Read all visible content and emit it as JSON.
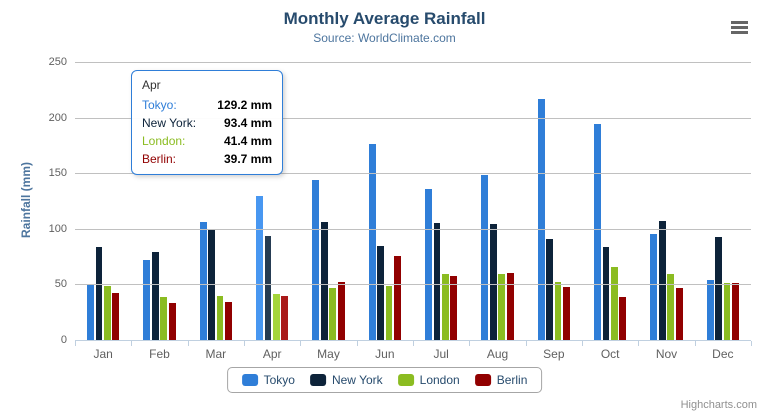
{
  "chart_data": {
    "type": "bar",
    "title": "Monthly Average Rainfall",
    "subtitle": "Source: WorldClimate.com",
    "xlabel": "",
    "ylabel": "Rainfall (mm)",
    "ylim": [
      0,
      250
    ],
    "yticks": [
      0,
      50,
      100,
      150,
      200,
      250
    ],
    "grid": true,
    "legend_position": "bottom-center",
    "categories": [
      "Jan",
      "Feb",
      "Mar",
      "Apr",
      "May",
      "Jun",
      "Jul",
      "Aug",
      "Sep",
      "Oct",
      "Nov",
      "Dec"
    ],
    "series": [
      {
        "name": "Tokyo",
        "color": "#2f7ed8",
        "hover_color": "#4897f1",
        "values": [
          49.9,
          71.5,
          106.4,
          129.2,
          144.0,
          176.0,
          135.6,
          148.5,
          216.4,
          194.1,
          95.6,
          54.4
        ]
      },
      {
        "name": "New York",
        "color": "#0d233a",
        "hover_color": "#263c53",
        "values": [
          83.6,
          78.8,
          98.5,
          93.4,
          106.0,
          84.5,
          105.0,
          104.3,
          91.2,
          83.5,
          106.6,
          92.3
        ]
      },
      {
        "name": "London",
        "color": "#8bbc21",
        "hover_color": "#a4d53a",
        "values": [
          48.9,
          38.8,
          39.3,
          41.4,
          47.0,
          48.3,
          59.0,
          59.6,
          52.4,
          65.2,
          59.3,
          51.2
        ]
      },
      {
        "name": "Berlin",
        "color": "#910000",
        "hover_color": "#aa1919",
        "values": [
          42.4,
          33.2,
          34.5,
          39.7,
          52.6,
          75.5,
          57.4,
          60.4,
          47.6,
          39.1,
          46.8,
          51.1
        ]
      }
    ],
    "highlighted_category": "Apr"
  },
  "tooltip": {
    "header": "Apr",
    "border_color": "#2f7ed8",
    "rows": [
      {
        "label": "Tokyo:",
        "value": "129.2 mm",
        "color": "#2f7ed8"
      },
      {
        "label": "New York:",
        "value": "93.4 mm",
        "color": "#0d233a"
      },
      {
        "label": "London:",
        "value": "41.4 mm",
        "color": "#8bbc21"
      },
      {
        "label": "Berlin:",
        "value": "39.7 mm",
        "color": "#910000"
      }
    ]
  },
  "legend": {
    "items": [
      {
        "label": "Tokyo",
        "color": "#2f7ed8"
      },
      {
        "label": "New York",
        "color": "#0d233a"
      },
      {
        "label": "London",
        "color": "#8bbc21"
      },
      {
        "label": "Berlin",
        "color": "#910000"
      }
    ]
  },
  "credits": "Highcharts.com",
  "icons": {
    "menu": "hamburger-menu-icon"
  },
  "style_colors": {
    "title": "#274b6d",
    "subtitle": "#4d759e",
    "axis_title": "#4d759e",
    "axis_label": "#606060",
    "gridline": "#c0c0c0",
    "axis_line": "#c0d0e0",
    "legend_border": "#a6a6a6",
    "legend_text": "#274b6d",
    "credits_text": "#909090"
  }
}
